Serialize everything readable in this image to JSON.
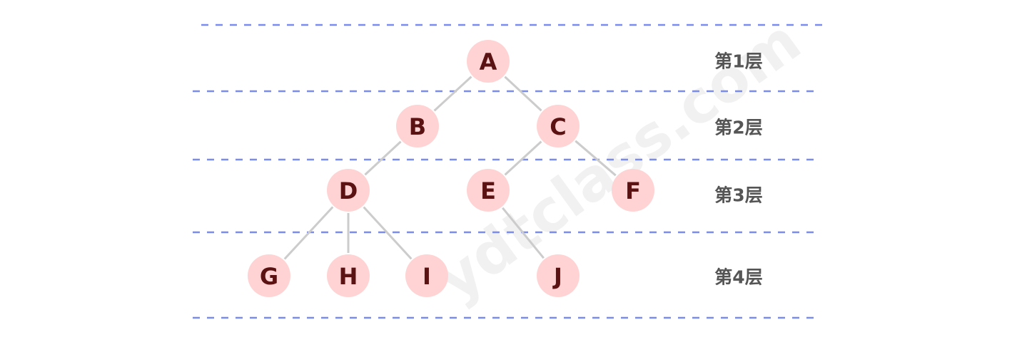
{
  "diagram": {
    "watermark": "ydtclass.com",
    "colors": {
      "node_fill": "#ffd3d3",
      "node_text": "#5a1212",
      "edge": "#cccccc",
      "dashed_line": "#7b8cf0",
      "level_text": "#555555"
    },
    "levels": [
      {
        "id": "l1",
        "label": "第1层"
      },
      {
        "id": "l2",
        "label": "第2层"
      },
      {
        "id": "l3",
        "label": "第3层"
      },
      {
        "id": "l4",
        "label": "第4层"
      }
    ],
    "nodes": [
      {
        "id": "A",
        "label": "A",
        "level": 1
      },
      {
        "id": "B",
        "label": "B",
        "level": 2
      },
      {
        "id": "C",
        "label": "C",
        "level": 2
      },
      {
        "id": "D",
        "label": "D",
        "level": 3
      },
      {
        "id": "E",
        "label": "E",
        "level": 3
      },
      {
        "id": "F",
        "label": "F",
        "level": 3
      },
      {
        "id": "G",
        "label": "G",
        "level": 4
      },
      {
        "id": "H",
        "label": "H",
        "level": 4
      },
      {
        "id": "I",
        "label": "I",
        "level": 4
      },
      {
        "id": "J",
        "label": "J",
        "level": 4
      }
    ],
    "edges": [
      {
        "from": "A",
        "to": "B"
      },
      {
        "from": "A",
        "to": "C"
      },
      {
        "from": "B",
        "to": "D"
      },
      {
        "from": "C",
        "to": "E"
      },
      {
        "from": "C",
        "to": "F"
      },
      {
        "from": "D",
        "to": "G"
      },
      {
        "from": "D",
        "to": "H"
      },
      {
        "from": "D",
        "to": "I"
      },
      {
        "from": "E",
        "to": "J"
      }
    ]
  }
}
